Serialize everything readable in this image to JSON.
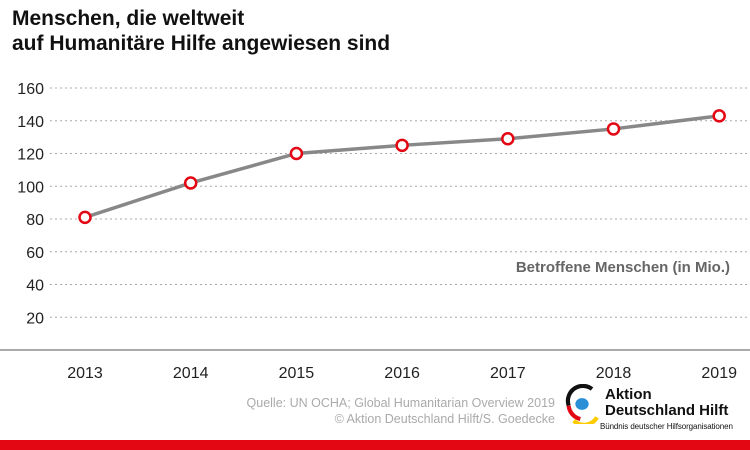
{
  "title_line1": "Menschen, die weltweit",
  "title_line2": "auf Humanitäre Hilfe angewiesen sind",
  "source_line1": "Quelle: UN OCHA; Global Humanitarian Overview 2019",
  "source_line2": "© Aktion Deutschland Hilft/S. Goedecke",
  "logo": {
    "line1": "Aktion",
    "line2": "Deutschland Hilft",
    "tagline": "Bündnis deutscher Hilfsorganisationen"
  },
  "colors": {
    "line": "#888888",
    "marker": "#e30613",
    "accent_bar": "#e30613",
    "grid": "#aaaaaa"
  },
  "chart_data": {
    "type": "line",
    "title": "Menschen, die weltweit auf Humanitäre Hilfe angewiesen sind",
    "categories": [
      "2013",
      "2014",
      "2015",
      "2016",
      "2017",
      "2018",
      "2019"
    ],
    "series": [
      {
        "name": "Betroffene Menschen (in Mio.)",
        "values": [
          81,
          102,
          120,
          125,
          129,
          135,
          143
        ]
      }
    ],
    "yticks": [
      20,
      40,
      60,
      80,
      100,
      120,
      140,
      160
    ],
    "ylim": [
      0,
      160
    ],
    "grid": true,
    "legend_placement": "right, inside plot"
  }
}
